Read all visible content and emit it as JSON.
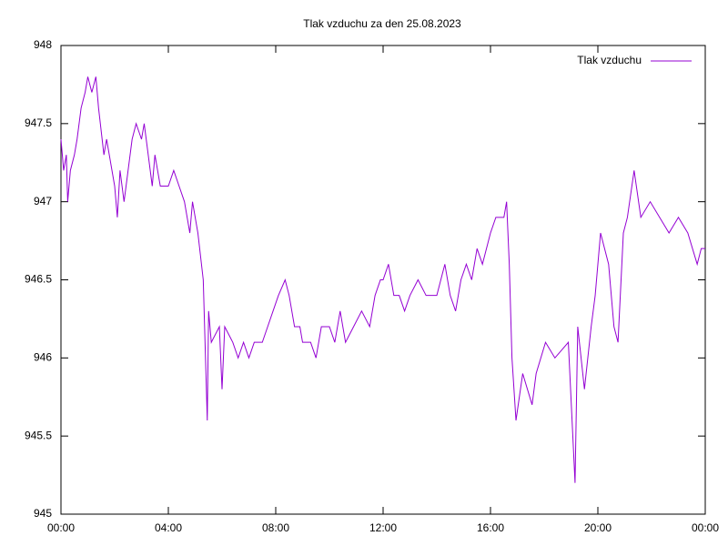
{
  "chart_data": {
    "type": "line",
    "title": "Tlak vzduchu za den 25.08.2023",
    "x": [
      0,
      0.1,
      0.2,
      0.25,
      0.35,
      0.5,
      0.6,
      0.75,
      0.9,
      1.0,
      1.15,
      1.3,
      1.4,
      1.6,
      1.7,
      1.8,
      2.0,
      2.1,
      2.2,
      2.35,
      2.5,
      2.65,
      2.8,
      3.0,
      3.1,
      3.25,
      3.4,
      3.5,
      3.7,
      4.0,
      4.2,
      4.4,
      4.6,
      4.8,
      4.9,
      5.1,
      5.3,
      5.45,
      5.5,
      5.6,
      5.9,
      6.0,
      6.1,
      6.4,
      6.6,
      6.8,
      7.0,
      7.2,
      7.5,
      7.7,
      7.9,
      8.1,
      8.35,
      8.5,
      8.7,
      8.9,
      9.0,
      9.3,
      9.5,
      9.7,
      10.0,
      10.2,
      10.4,
      10.6,
      10.9,
      11.2,
      11.5,
      11.7,
      11.9,
      12.0,
      12.2,
      12.4,
      12.6,
      12.8,
      13.0,
      13.3,
      13.6,
      14.0,
      14.3,
      14.5,
      14.7,
      14.9,
      15.1,
      15.3,
      15.5,
      15.7,
      16.0,
      16.2,
      16.5,
      16.6,
      16.7,
      16.8,
      16.95,
      17.2,
      17.55,
      17.7,
      18.05,
      18.4,
      18.9,
      19.15,
      19.25,
      19.5,
      19.75,
      19.9,
      20.1,
      20.4,
      20.6,
      20.75,
      20.95,
      21.1,
      21.35,
      21.6,
      21.95,
      22.3,
      22.65,
      23.0,
      23.35,
      23.7,
      23.85,
      24.0
    ],
    "series": [
      {
        "name": "Tlak vzduchu",
        "color": "#9400d3",
        "values": [
          947.4,
          947.2,
          947.3,
          947.0,
          947.2,
          947.3,
          947.4,
          947.6,
          947.7,
          947.8,
          947.7,
          947.8,
          947.6,
          947.3,
          947.4,
          947.3,
          947.1,
          946.9,
          947.2,
          947.0,
          947.2,
          947.4,
          947.5,
          947.4,
          947.5,
          947.3,
          947.1,
          947.3,
          947.1,
          947.1,
          947.2,
          947.1,
          947.0,
          946.8,
          947.0,
          946.8,
          946.5,
          945.6,
          946.3,
          946.1,
          946.2,
          945.8,
          946.2,
          946.1,
          946.0,
          946.1,
          946.0,
          946.1,
          946.1,
          946.2,
          946.3,
          946.4,
          946.5,
          946.4,
          946.2,
          946.2,
          946.1,
          946.1,
          946.0,
          946.2,
          946.2,
          946.1,
          946.3,
          946.1,
          946.2,
          946.3,
          946.2,
          946.4,
          946.5,
          946.5,
          946.6,
          946.4,
          946.4,
          946.3,
          946.4,
          946.5,
          946.4,
          946.4,
          946.6,
          946.4,
          946.3,
          946.5,
          946.6,
          946.5,
          946.7,
          946.6,
          946.8,
          946.9,
          946.9,
          947.0,
          946.6,
          946.0,
          945.6,
          945.9,
          945.7,
          945.9,
          946.1,
          946.0,
          946.1,
          945.2,
          946.2,
          945.8,
          946.2,
          946.4,
          946.8,
          946.6,
          946.2,
          946.1,
          946.8,
          946.9,
          947.2,
          946.9,
          947.0,
          946.9,
          946.8,
          946.9,
          946.8,
          946.6,
          946.7,
          946.7
        ]
      }
    ],
    "xlim": [
      0,
      24
    ],
    "xticks": [
      {
        "value": 0,
        "label": "00:00"
      },
      {
        "value": 4,
        "label": "04:00"
      },
      {
        "value": 8,
        "label": "08:00"
      },
      {
        "value": 12,
        "label": "12:00"
      },
      {
        "value": 16,
        "label": "16:00"
      },
      {
        "value": 20,
        "label": "20:00"
      },
      {
        "value": 24,
        "label": "00:00"
      }
    ],
    "ylim": [
      945,
      948
    ],
    "yticks": [
      945,
      945.5,
      946,
      946.5,
      947,
      947.5,
      948
    ],
    "grid": false,
    "legend": "top-right"
  }
}
